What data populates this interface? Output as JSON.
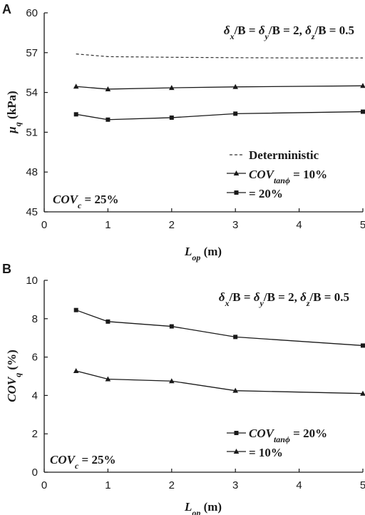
{
  "chart_data": [
    {
      "panel": "A",
      "type": "line",
      "xlabel": {
        "main": "L",
        "sub": "op",
        "unit": " (m)"
      },
      "ylabel": {
        "main": "μ",
        "sub": "q",
        "unit": " (kPa)"
      },
      "xlim": [
        0,
        5
      ],
      "ylim": [
        45,
        60
      ],
      "xticks": [
        0,
        1,
        2,
        3,
        4,
        5
      ],
      "yticks": [
        45,
        48,
        51,
        54,
        57,
        60
      ],
      "header": [
        {
          "t": "δ",
          "s": null
        },
        {
          "t": "x",
          "s": "sub"
        },
        {
          "t": "/B = ",
          "s": null
        },
        {
          "t": "δ",
          "s": null
        },
        {
          "t": "y",
          "s": "sub"
        },
        {
          "t": "/B = 2, ",
          "s": null
        },
        {
          "t": "δ",
          "s": null
        },
        {
          "t": "z",
          "s": "sub"
        },
        {
          "t": "/B = 0.5",
          "s": null
        }
      ],
      "note": [
        {
          "t": "COV",
          "s": null
        },
        {
          "t": "c",
          "s": "sub"
        },
        {
          "t": " = 25%",
          "s": null
        }
      ],
      "series": [
        {
          "marker": "none",
          "dash": true,
          "legend": [
            {
              "t": "Deterministic",
              "s": "plain"
            }
          ],
          "x": [
            0.5,
            1,
            2,
            3,
            4,
            5
          ],
          "values": [
            56.9,
            56.7,
            56.65,
            56.62,
            56.6,
            56.6
          ]
        },
        {
          "marker": "triangle",
          "dash": false,
          "legend": [
            {
              "t": "COV",
              "s": null
            },
            {
              "t": "tanϕ",
              "s": "sub"
            },
            {
              "t": " = 10%",
              "s": null
            }
          ],
          "x": [
            0.5,
            1,
            2,
            3,
            5
          ],
          "values": [
            54.45,
            54.25,
            54.35,
            54.42,
            54.5
          ]
        },
        {
          "marker": "square",
          "dash": false,
          "legend": [
            {
              "t": " = 20%",
              "s": "plain"
            }
          ],
          "x": [
            0.5,
            1,
            2,
            3,
            5
          ],
          "values": [
            52.35,
            51.95,
            52.1,
            52.4,
            52.55
          ]
        }
      ]
    },
    {
      "panel": "B",
      "type": "line",
      "xlabel": {
        "main": "L",
        "sub": "op",
        "unit": " (m)"
      },
      "ylabel": {
        "main": "COV",
        "sub": "q",
        "unit": " (%)"
      },
      "xlim": [
        0,
        5
      ],
      "ylim": [
        0,
        10
      ],
      "xticks": [
        0,
        1,
        2,
        3,
        4,
        5
      ],
      "yticks": [
        0,
        2,
        4,
        6,
        8,
        10
      ],
      "header": [
        {
          "t": "δ",
          "s": null
        },
        {
          "t": "x",
          "s": "sub"
        },
        {
          "t": "/B = ",
          "s": null
        },
        {
          "t": "δ",
          "s": null
        },
        {
          "t": "y",
          "s": "sub"
        },
        {
          "t": "/B = 2, ",
          "s": null
        },
        {
          "t": "δ",
          "s": null
        },
        {
          "t": "z",
          "s": "sub"
        },
        {
          "t": "/B = 0.5",
          "s": null
        }
      ],
      "note": [
        {
          "t": "COV",
          "s": null
        },
        {
          "t": "c",
          "s": "sub"
        },
        {
          "t": " = 25%",
          "s": null
        }
      ],
      "series": [
        {
          "marker": "square",
          "dash": false,
          "legend": [
            {
              "t": "COV",
              "s": null
            },
            {
              "t": "tanϕ",
              "s": "sub"
            },
            {
              "t": " = 20%",
              "s": null
            }
          ],
          "x": [
            0.5,
            1,
            2,
            3,
            5
          ],
          "values": [
            8.45,
            7.85,
            7.6,
            7.05,
            6.6
          ]
        },
        {
          "marker": "triangle",
          "dash": false,
          "legend": [
            {
              "t": " = 10%",
              "s": "plain"
            }
          ],
          "x": [
            0.5,
            1,
            2,
            3,
            5
          ],
          "values": [
            5.28,
            4.85,
            4.75,
            4.25,
            4.1
          ]
        }
      ]
    }
  ]
}
